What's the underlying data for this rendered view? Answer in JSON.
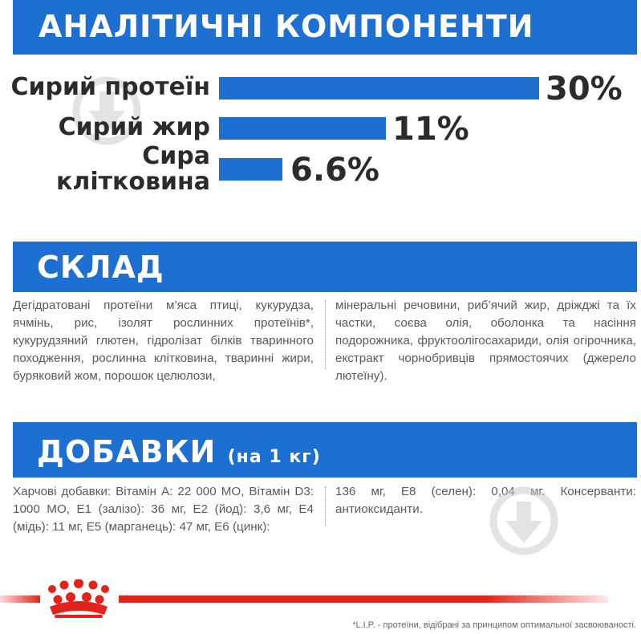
{
  "analytics": {
    "title": "АНАЛІТИЧНІ КОМПОНЕНТИ",
    "rows": [
      {
        "label_line1": "Сирий протеїн",
        "label_line2": "",
        "value": "30%",
        "percent": 30
      },
      {
        "label_line1": "Сирий жир",
        "label_line2": "",
        "value": "11%",
        "percent": 11
      },
      {
        "label_line1": "Сира",
        "label_line2": "клітковина",
        "value": "6.6%",
        "percent": 6.6
      }
    ]
  },
  "composition": {
    "title": "СКЛАД",
    "col1": "Дегідратовані протеїни м’яса птиці, кукурудза, ячмінь, рис, ізолят рослинних протеїнів*, кукурудзяний глютен, гідролізат білків тваринного походження, рослинна клітковина, тваринні жири, буряковий жом, порошок целюлози,",
    "col2": "мінеральні речовини, риб’ячий жир, дріжджі та їх частки, соєва олія, оболонка та насіння подорожника, фруктоолігосахариди, олія огірочника, екстракт чорнобривців прямостоячих (джерело лютеїну)."
  },
  "additives": {
    "title": "ДОБАВКИ",
    "subtitle": "(на 1 кг)",
    "col1": "Харчові добавки: Вітамін A: 22 000 МО, Вітамін D3: 1000 МО, E1 (залізо): 36 мг, E2 (йод): 3,6 мг, E4 (мідь): 11 мг, E5 (марганець): 47 мг, E6 (цинк):",
    "col2": "136 мг, E8 (селен): 0,04 мг. Консерванти: антиоксиданти."
  },
  "footnote": "*L.I.P. - протеїни, відібрані за принципом оптимальної засвоюваності.",
  "colors": {
    "brand_blue": "#1e6fd2",
    "brand_red": "#e2231a"
  },
  "icons": [
    "dropper-watermark-icon",
    "crown-logo-icon"
  ]
}
